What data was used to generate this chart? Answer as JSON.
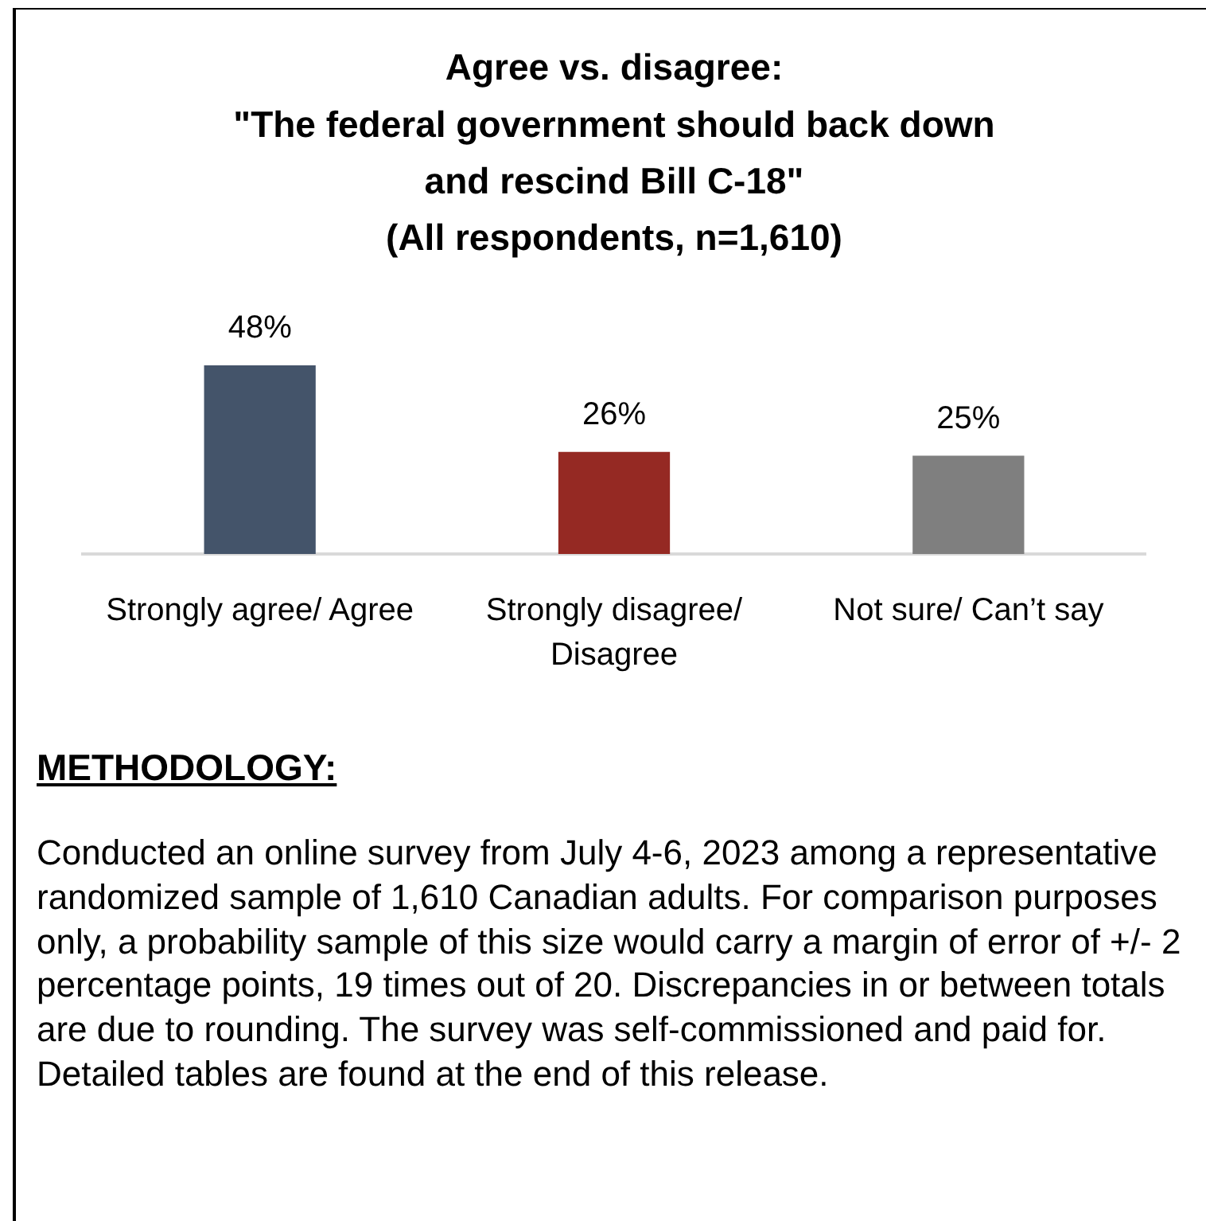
{
  "chart_data": {
    "type": "bar",
    "title": "Agree vs. disagree:\n\"The federal government should back down\nand rescind Bill C-18\"\n(All respondents, n=1,610)",
    "categories": [
      "Strongly agree/ Agree",
      "Strongly disagree/ Disagree",
      "Not sure/ Can’t say"
    ],
    "values": [
      48,
      26,
      25
    ],
    "colors": [
      "#44546a",
      "#952923",
      "#7f7f7f"
    ],
    "value_labels": [
      "48%",
      "26%",
      "25%"
    ],
    "tick_labels": "x",
    "annotations": [
      "METHODOLOGY:",
      "Conducted an online survey from July 4-6, 2023 among a representative randomized sample of 1,610 Canadian adults. For comparison purposes only, a probability sample of this size would carry a margin of error of +/- 2 percentage points, 19 times out of 20. Discrepancies in or between totals are due to rounding. The survey was self-commissioned and paid for. Detailed tables are found at the end of this release."
    ]
  }
}
